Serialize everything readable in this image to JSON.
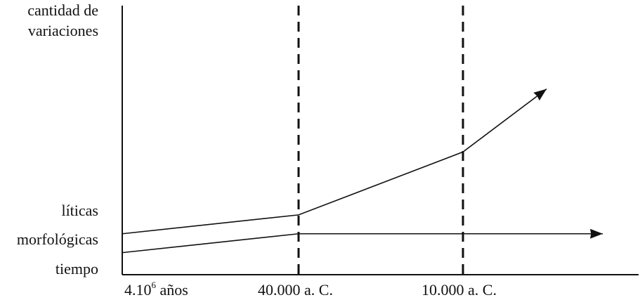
{
  "chart_data": {
    "type": "line",
    "ylabel": "cantidad de variaciones",
    "xlabel": "",
    "x_ticks": [
      {
        "base": "4.10",
        "sup": "6",
        "rest": " años"
      },
      {
        "text": "40.000 a. C."
      },
      {
        "text": "10.000 a. C."
      }
    ],
    "x_categories": [
      "4.10⁶ años",
      "40.000 a. C.",
      "10.000 a. C."
    ],
    "vertical_markers": [
      "40.000 a. C.",
      "10.000 a. C."
    ],
    "series": [
      {
        "name": "líticas",
        "points": [
          {
            "x": "4.10⁶ años",
            "y": 1.3
          },
          {
            "x": "40.000 a. C.",
            "y": 1.9
          },
          {
            "x": "10.000 a. C.",
            "y": 3.9
          },
          {
            "x": "arrow",
            "y": 5.9
          }
        ]
      },
      {
        "name": "morfológicas",
        "points": [
          {
            "x": "4.10⁶ años",
            "y": 0.7
          },
          {
            "x": "40.000 a. C.",
            "y": 1.3
          },
          {
            "x": "10.000 a. C.",
            "y": 1.3
          },
          {
            "x": "arrow",
            "y": 1.3
          }
        ]
      }
    ],
    "y_axis_labels_bottom": "tiempo",
    "grid": false,
    "legend": "none"
  },
  "colors": {
    "line": "#111111",
    "background": "#ffffff"
  }
}
